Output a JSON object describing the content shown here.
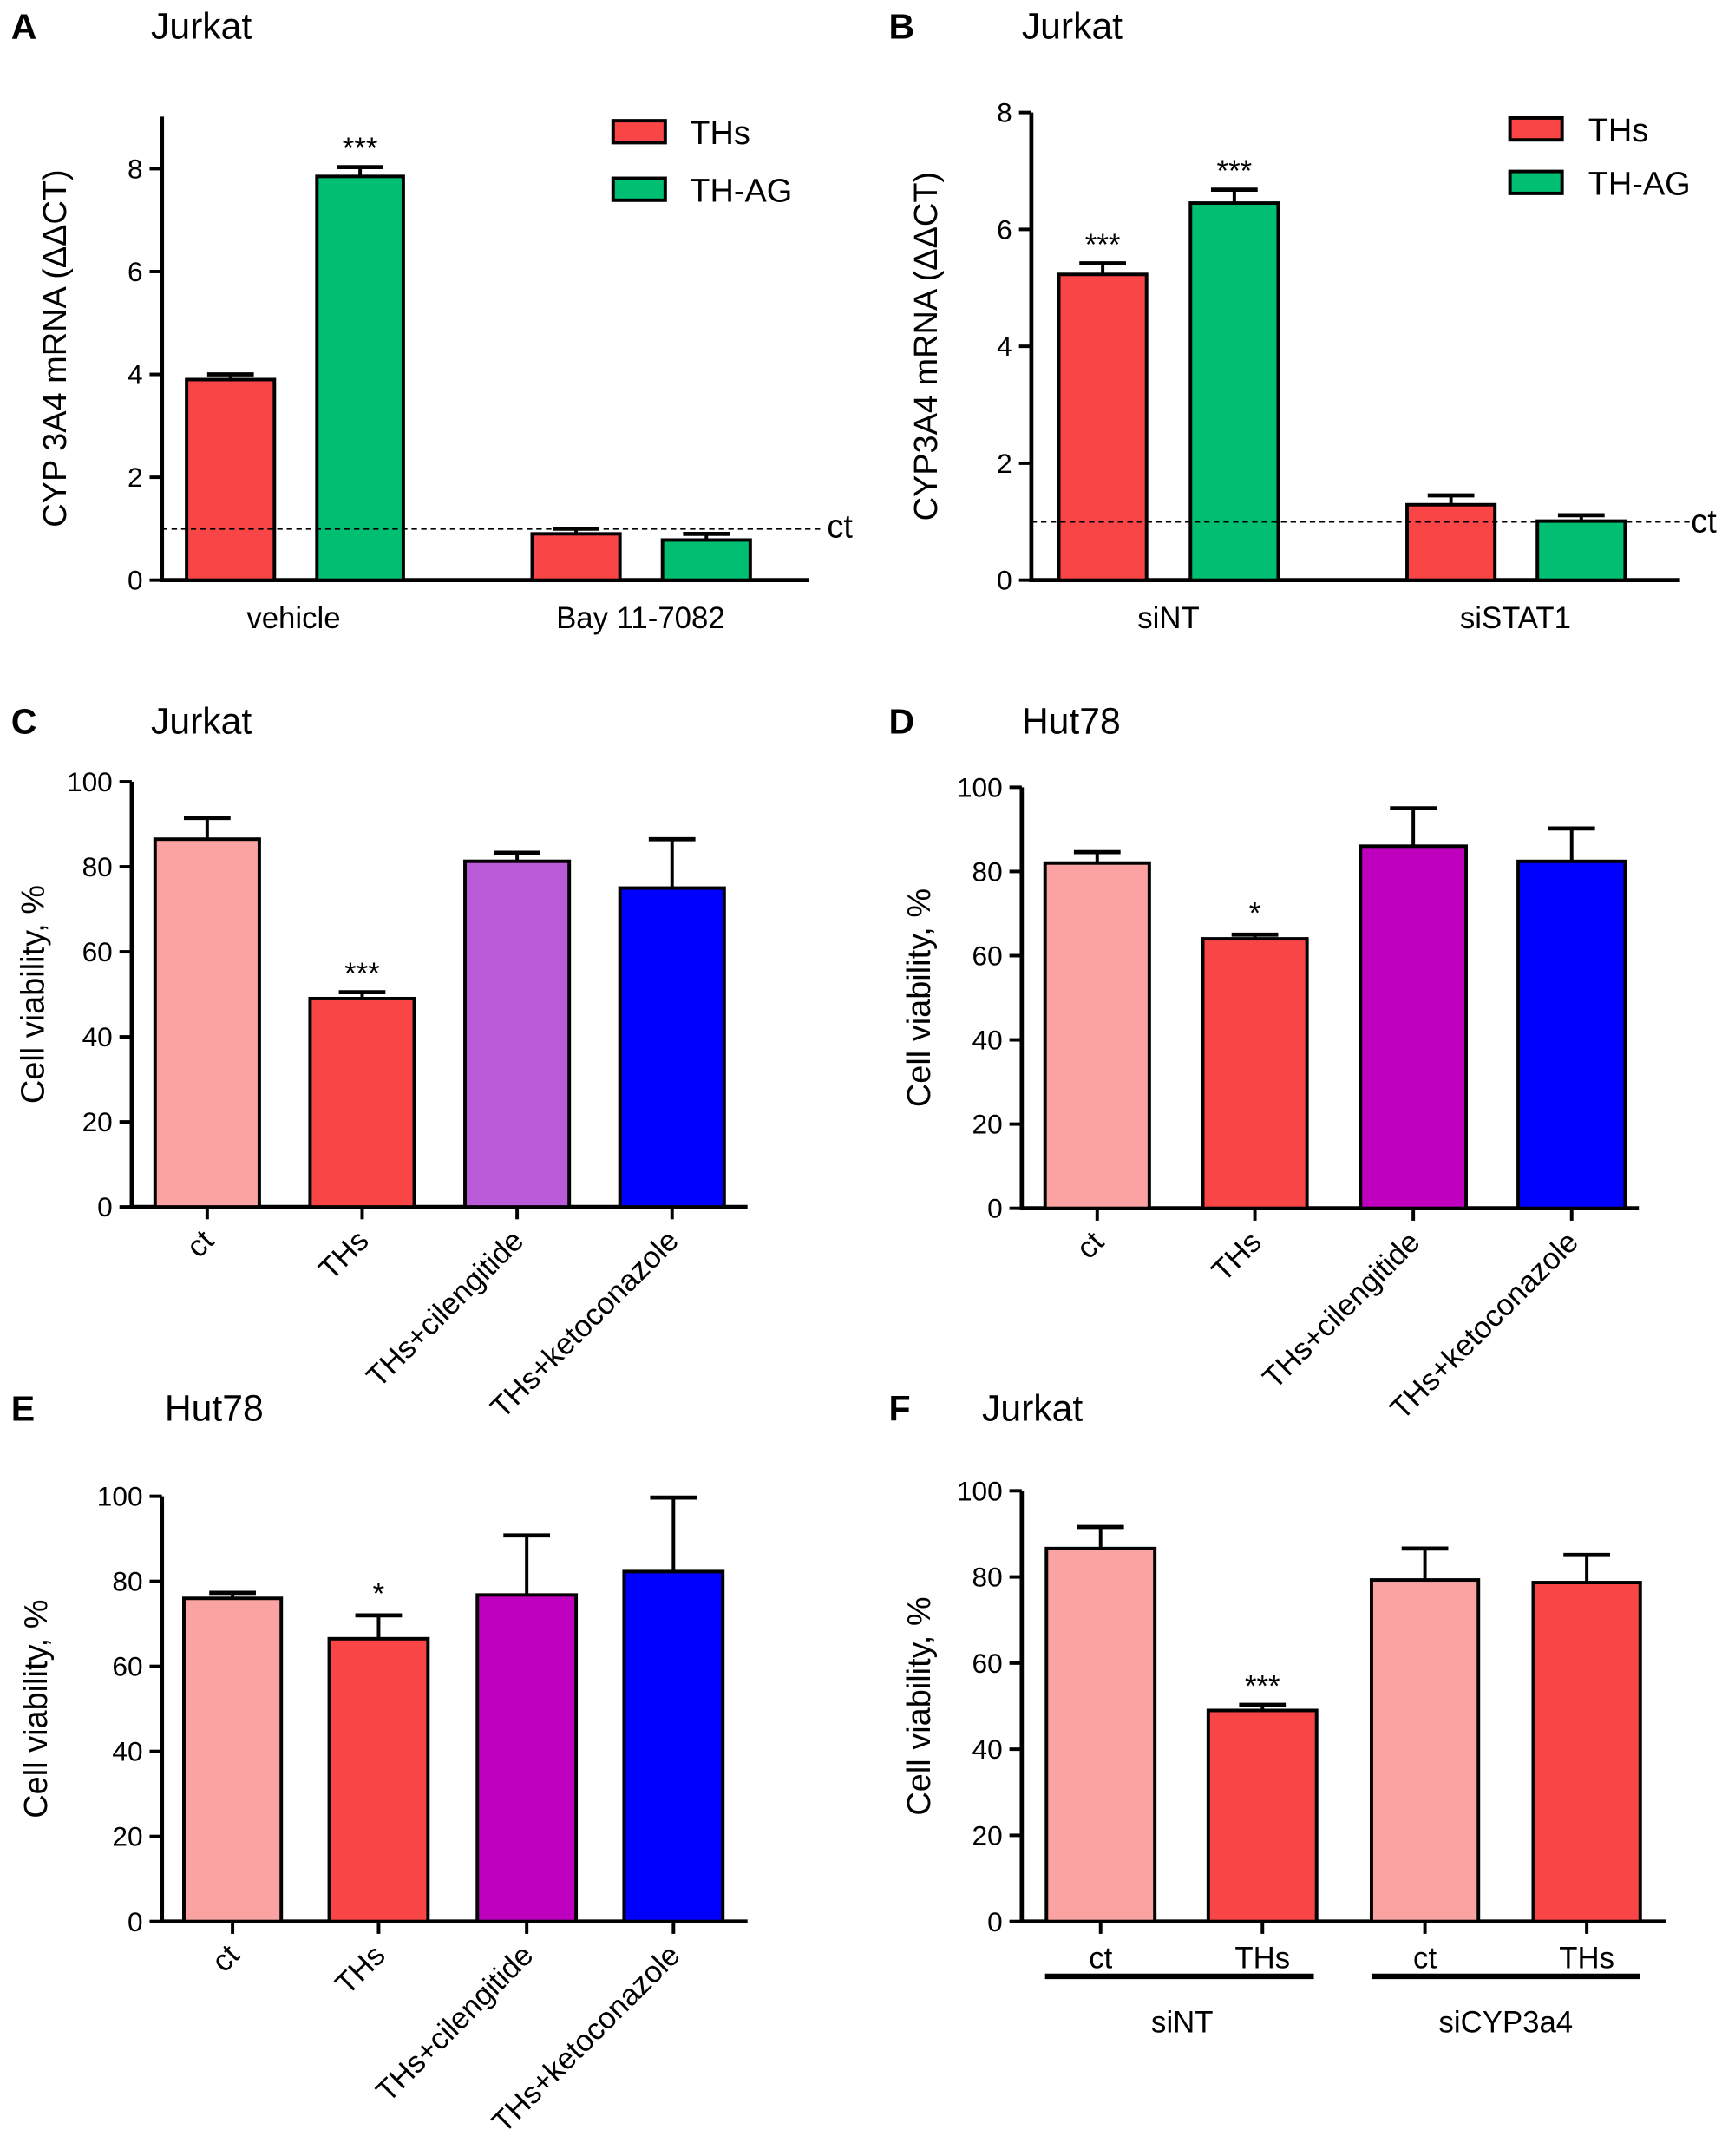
{
  "chart_data": [
    {
      "panel": "A",
      "title": "Jurkat",
      "type": "bar",
      "ylabel": "CYP 3A4 mRNA (ΔΔCT)",
      "ylim": [
        0,
        9
      ],
      "yticks": [
        0,
        2,
        4,
        6,
        8
      ],
      "categories": [
        "vehicle",
        "Bay 11-7082"
      ],
      "series": [
        {
          "name": "THs",
          "color": "#F94545",
          "values": [
            3.9,
            0.9
          ],
          "errors": [
            0.1,
            0.1
          ],
          "annotations": [
            "",
            ""
          ]
        },
        {
          "name": "TH-AG",
          "color": "#00BF72",
          "values": [
            7.85,
            0.78
          ],
          "errors": [
            0.18,
            0.12
          ],
          "annotations": [
            "***",
            ""
          ]
        }
      ],
      "reference_line": {
        "value": 1,
        "label": "ct",
        "style": "dashed"
      },
      "legend": "top-right"
    },
    {
      "panel": "B",
      "title": "Jurkat",
      "type": "bar",
      "ylabel": "CYP3A4 mRNA (ΔΔCT)",
      "ylim": [
        0,
        8
      ],
      "yticks": [
        0,
        2,
        4,
        6,
        8
      ],
      "categories": [
        "siNT",
        "siSTAT1"
      ],
      "series": [
        {
          "name": "THs",
          "color": "#F94545",
          "values": [
            5.23,
            1.29
          ],
          "errors": [
            0.19,
            0.16
          ],
          "annotations": [
            "***",
            ""
          ]
        },
        {
          "name": "TH-AG",
          "color": "#00BF72",
          "values": [
            6.45,
            1.01
          ],
          "errors": [
            0.23,
            0.1
          ],
          "annotations": [
            "***",
            ""
          ]
        }
      ],
      "reference_line": {
        "value": 1,
        "label": "ct",
        "style": "dashed"
      },
      "legend": "top-right"
    },
    {
      "panel": "C",
      "title": "Jurkat",
      "type": "bar",
      "ylabel": "Cell viability, %",
      "ylim": [
        0,
        100
      ],
      "yticks": [
        0,
        20,
        40,
        60,
        80,
        100
      ],
      "categories": [
        "ct",
        "THs",
        "THs+cilengitide",
        "THs+ketoconazole"
      ],
      "values": [
        86.5,
        49,
        81.3,
        75
      ],
      "errors": [
        5,
        1.5,
        2,
        11.5
      ],
      "colors": [
        "#FBA3A3",
        "#F94545",
        "#B95AD8",
        "#0000FF"
      ],
      "annotations": [
        "",
        "***",
        "",
        ""
      ]
    },
    {
      "panel": "D",
      "title": "Hut78",
      "type": "bar",
      "ylabel": "Cell viability, %",
      "ylim": [
        0,
        100
      ],
      "yticks": [
        0,
        20,
        40,
        60,
        80,
        100
      ],
      "categories": [
        "ct",
        "THs",
        "THs+cilengitide",
        "THs+ketoconazole"
      ],
      "values": [
        82,
        64,
        86,
        82.4
      ],
      "errors": [
        2.6,
        1,
        9,
        7.8
      ],
      "colors": [
        "#FBA3A3",
        "#F94545",
        "#BF00BF",
        "#0000FF"
      ],
      "annotations": [
        "",
        "*",
        "",
        ""
      ]
    },
    {
      "panel": "E",
      "title": "Hut78",
      "type": "bar",
      "ylabel": "Cell viability, %",
      "ylim": [
        0,
        100
      ],
      "yticks": [
        0,
        20,
        40,
        60,
        80,
        100
      ],
      "categories": [
        "ct",
        "THs",
        "THs+cilengitide",
        "THs+ketoconazole"
      ],
      "values": [
        76,
        66.5,
        76.8,
        82.3
      ],
      "errors": [
        1.3,
        5.5,
        14,
        17.4
      ],
      "colors": [
        "#FBA3A3",
        "#F94545",
        "#BF00BF",
        "#0000FF"
      ],
      "annotations": [
        "",
        "*",
        "",
        ""
      ]
    },
    {
      "panel": "F",
      "title": "Jurkat",
      "type": "bar",
      "ylabel": "Cell viability, %",
      "ylim": [
        0,
        100
      ],
      "yticks": [
        0,
        20,
        40,
        60,
        80,
        100
      ],
      "categories": [
        "ct",
        "THs",
        "ct",
        "THs"
      ],
      "groups": [
        "siNT",
        "siCYP3a4"
      ],
      "values": [
        86.6,
        49,
        79.3,
        78.7
      ],
      "errors": [
        5,
        1.3,
        7.3,
        6.4
      ],
      "colors": [
        "#FBA3A3",
        "#F94545",
        "#FBA3A3",
        "#F94545"
      ],
      "annotations": [
        "",
        "***",
        "",
        ""
      ]
    }
  ]
}
